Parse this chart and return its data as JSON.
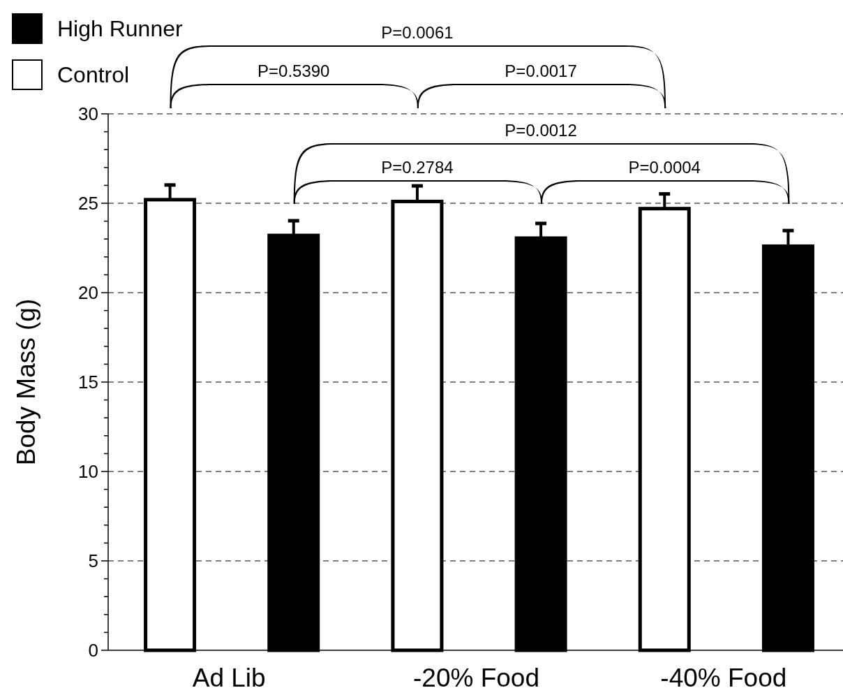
{
  "chart_data": {
    "type": "bar",
    "ylabel": "Body Mass (g)",
    "categories": [
      "Ad Lib",
      "-20% Food",
      "-40% Food"
    ],
    "series": [
      {
        "name": "Control",
        "color": "#ffffff",
        "values": [
          25.2,
          25.1,
          24.7
        ],
        "errors": [
          [
            25.2,
            26.1
          ],
          [
            25.1,
            26.05
          ],
          [
            24.7,
            25.6
          ]
        ]
      },
      {
        "name": "High Runner",
        "color": "#000000",
        "values": [
          23.2,
          23.05,
          22.6
        ],
        "errors": [
          [
            23.2,
            24.1
          ],
          [
            23.05,
            23.95
          ],
          [
            22.6,
            23.55
          ]
        ]
      }
    ],
    "ylim": [
      0,
      30
    ],
    "yticks": [
      0,
      {
        "value": 1,
        "label": null
      },
      {
        "value": 2,
        "label": null
      },
      {
        "value": 3,
        "label": null
      },
      {
        "value": 4,
        "label": null
      },
      5,
      {
        "value": 6,
        "label": null
      },
      {
        "value": 7,
        "label": null
      },
      {
        "value": 8,
        "label": null
      },
      {
        "value": 9,
        "label": null
      },
      10,
      {
        "value": 11,
        "label": null
      },
      {
        "value": 12,
        "label": null
      },
      {
        "value": 13,
        "label": null
      },
      {
        "value": 14,
        "label": null
      },
      15,
      {
        "value": 16,
        "label": null
      },
      {
        "value": 17,
        "label": null
      },
      {
        "value": 18,
        "label": null
      },
      {
        "value": 19,
        "label": null
      },
      20,
      {
        "value": 21,
        "label": null
      },
      {
        "value": 22,
        "label": null
      },
      {
        "value": 23,
        "label": null
      },
      {
        "value": 24,
        "label": null
      },
      25,
      {
        "value": 26,
        "label": null
      },
      {
        "value": 27,
        "label": null
      },
      {
        "value": 28,
        "label": null
      },
      {
        "value": 29,
        "label": null
      },
      30
    ],
    "grid": "y",
    "legend": "top left",
    "annotations": [
      "P=0.0061",
      "P=0.5390",
      "P=0.0017",
      "P=0.0012",
      "P=0.2784",
      "P=0.0004"
    ]
  }
}
